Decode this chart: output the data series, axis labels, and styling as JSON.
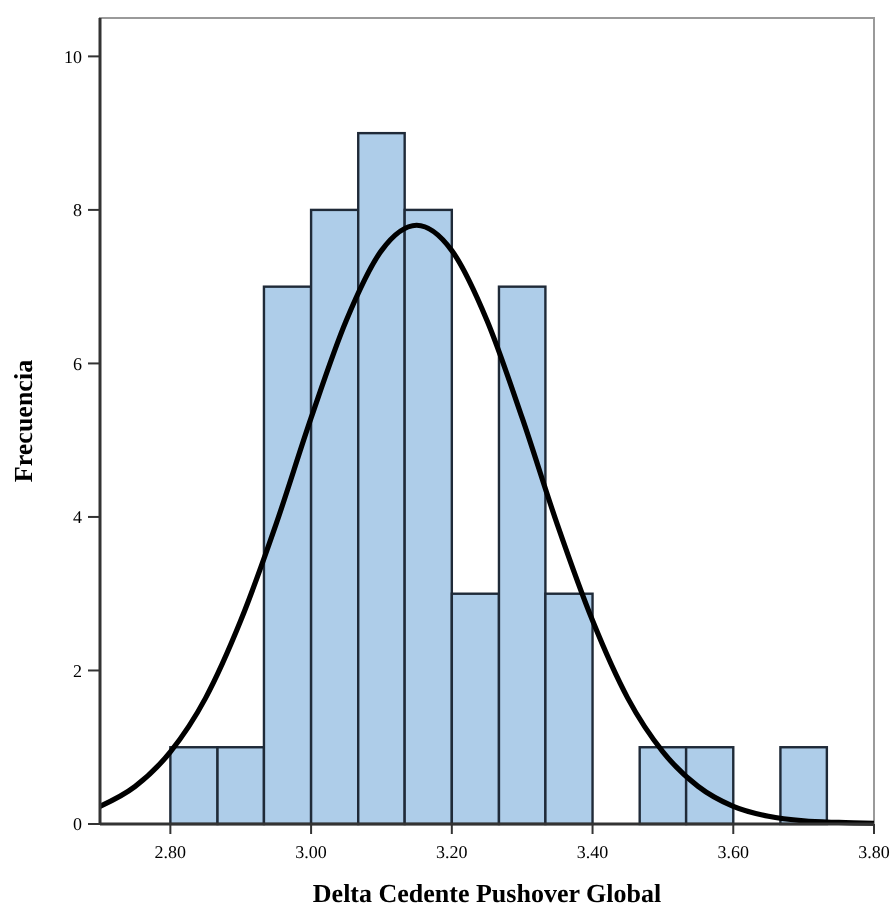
{
  "chart_data": {
    "type": "histogram",
    "xlabel": "Delta Cedente Pushover Global",
    "ylabel": "Frecuencia",
    "bins": [
      2.8,
      2.867,
      2.933,
      3.0,
      3.067,
      3.133,
      3.2,
      3.267,
      3.333,
      3.4,
      3.467,
      3.533,
      3.6,
      3.667,
      3.733
    ],
    "values": [
      1,
      1,
      7,
      8,
      9,
      8,
      3,
      7,
      3,
      0,
      1,
      1,
      0,
      1
    ],
    "color": "#aecde9",
    "xlim": [
      2.7,
      3.8
    ],
    "xticks": [
      {
        "value": 2.8,
        "label": "2.80"
      },
      {
        "value": 3.0,
        "label": "3.00"
      },
      {
        "value": 3.2,
        "label": "3.20"
      },
      {
        "value": 3.4,
        "label": "3.40"
      },
      {
        "value": 3.6,
        "label": "3.60"
      },
      {
        "value": 3.8,
        "label": "3.80"
      }
    ],
    "ylim": [
      0,
      10.5
    ],
    "yticks": [
      0,
      2,
      4,
      6,
      8,
      10
    ],
    "grid": false,
    "series": [
      {
        "type": "line",
        "color": "#000000",
        "marker": "none",
        "line_style": "solid",
        "x": [
          2.7,
          2.75,
          2.8,
          2.85,
          2.9,
          2.95,
          3.0,
          3.05,
          3.1,
          3.15,
          3.2,
          3.25,
          3.3,
          3.35,
          3.4,
          3.45,
          3.5,
          3.55,
          3.6,
          3.65,
          3.7,
          3.75,
          3.8
        ],
        "values": [
          0.23,
          0.49,
          0.94,
          1.64,
          2.65,
          3.9,
          5.29,
          6.56,
          7.47,
          7.8,
          7.47,
          6.56,
          5.29,
          3.9,
          2.65,
          1.64,
          0.94,
          0.49,
          0.23,
          0.1,
          0.04,
          0.02,
          0.01
        ]
      }
    ]
  }
}
